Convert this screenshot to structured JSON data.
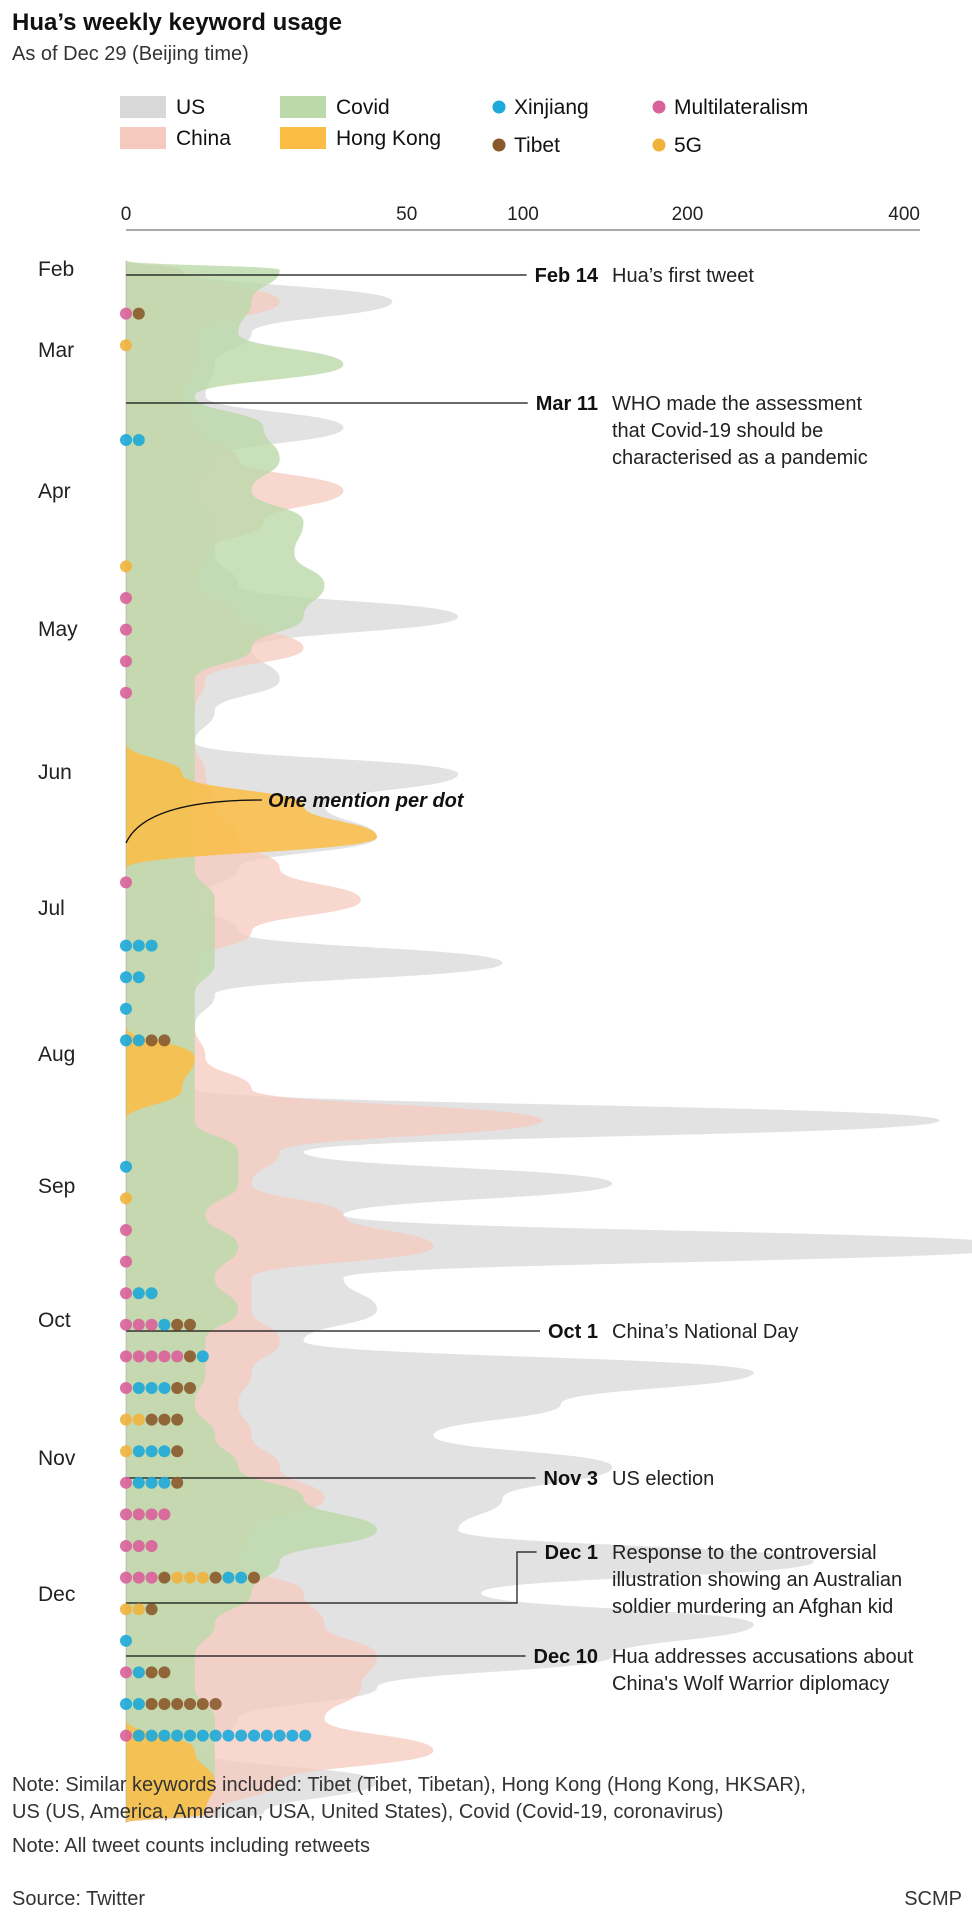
{
  "title": "Hua’s weekly keyword usage",
  "subtitle": "As of Dec 29 (Beijing time)",
  "legend": [
    {
      "label": "US",
      "kind": "area",
      "color": "#d8d8d8"
    },
    {
      "label": "China",
      "kind": "area",
      "color": "#f6c9bf"
    },
    {
      "label": "Covid",
      "kind": "area",
      "color": "#bcd9a9"
    },
    {
      "label": "Hong Kong",
      "kind": "area",
      "color": "#fbbd44"
    },
    {
      "label": "Xinjiang",
      "kind": "dot",
      "color": "#1da9d9"
    },
    {
      "label": "Tibet",
      "kind": "dot",
      "color": "#8a5a2c"
    },
    {
      "label": "Multilateralism",
      "kind": "dot",
      "color": "#d9609a"
    },
    {
      "label": "5G",
      "kind": "dot",
      "color": "#f0b43d"
    }
  ],
  "axis": {
    "ticks": [
      "0",
      "50",
      "100",
      "200",
      "400"
    ]
  },
  "months": [
    "Feb",
    "Mar",
    "Apr",
    "May",
    "Jun",
    "Jul",
    "Aug",
    "Sep",
    "Oct",
    "Nov",
    "Dec"
  ],
  "callout": "One mention per dot",
  "annotations": [
    {
      "date": "Feb 14",
      "lines": [
        "Hua’s first tweet"
      ]
    },
    {
      "date": "Mar 11",
      "lines": [
        "WHO made the assessment",
        "that Covid-19 should be",
        "characterised as a pandemic"
      ]
    },
    {
      "date": "Oct 1",
      "lines": [
        "China’s National Day"
      ]
    },
    {
      "date": "Nov 3",
      "lines": [
        "US election"
      ]
    },
    {
      "date": "Dec 1",
      "lines": [
        "Response to the controversial",
        "illustration showing an Australian",
        "soldier murdering an Afghan kid"
      ]
    },
    {
      "date": "Dec 10",
      "lines": [
        "Hua addresses accusations about",
        "China's Wolf Warrior diplomacy"
      ]
    }
  ],
  "notes": [
    "Note: Similar keywords included: Tibet (Tibet, Tibetan), Hong Kong (Hong Kong, HKSAR),",
    "US (US, America, American, USA, United States), Covid (Covid-19, coronavirus)",
    "Note: All tweet counts including retweets"
  ],
  "source": "Source: Twitter",
  "credit": "SCMP",
  "chart_data": {
    "type": "area",
    "x_scale": "sqrt",
    "x_ticks": [
      0,
      50,
      100,
      200,
      400
    ],
    "series": [
      {
        "name": "US",
        "color": "#d8d8d8",
        "values": [
          2,
          45,
          10,
          5,
          4,
          30,
          5,
          3,
          5,
          5,
          8,
          70,
          10,
          15,
          5,
          3,
          70,
          25,
          40,
          8,
          3,
          8,
          90,
          5,
          3,
          3,
          3,
          420,
          20,
          150,
          30,
          510,
          30,
          40,
          20,
          250,
          120,
          60,
          150,
          90,
          70,
          300,
          80,
          250,
          150,
          40,
          8,
          3,
          40,
          12
        ]
      },
      {
        "name": "China",
        "color": "#f6c9bf",
        "values": [
          2,
          15,
          3,
          3,
          2,
          3,
          8,
          30,
          12,
          4,
          3,
          8,
          20,
          4,
          3,
          3,
          4,
          5,
          8,
          15,
          35,
          10,
          3,
          3,
          3,
          4,
          10,
          110,
          15,
          10,
          30,
          60,
          10,
          10,
          15,
          10,
          8,
          10,
          15,
          25,
          10,
          8,
          20,
          25,
          40,
          35,
          25,
          60,
          15,
          5
        ]
      },
      {
        "name": "Covid",
        "color": "#bcd9a9",
        "values": [
          15,
          10,
          8,
          30,
          3,
          12,
          15,
          10,
          20,
          18,
          25,
          20,
          10,
          3,
          3,
          3,
          3,
          3,
          3,
          3,
          5,
          5,
          5,
          3,
          3,
          3,
          3,
          3,
          8,
          8,
          4,
          8,
          5,
          8,
          4,
          4,
          3,
          5,
          8,
          20,
          40,
          15,
          10,
          5,
          3,
          3,
          5,
          5,
          5,
          3
        ]
      },
      {
        "name": "Hong Kong",
        "color": "#fbbd44",
        "values": [
          0,
          0,
          0,
          0,
          0,
          0,
          0,
          0,
          0,
          0,
          0,
          0,
          0,
          0,
          0,
          0,
          2,
          20,
          40,
          0,
          0,
          0,
          0,
          0,
          0,
          3,
          2,
          0,
          0,
          0,
          0,
          0,
          0,
          0,
          0,
          0,
          0,
          0,
          0,
          0,
          0,
          0,
          0,
          0,
          0,
          0,
          0,
          3,
          5,
          4
        ]
      }
    ],
    "dot_rows": [
      {
        "week": 1,
        "dots": [
          "Multilateralism",
          "Tibet"
        ]
      },
      {
        "week": 2,
        "dots": [
          "5G"
        ]
      },
      {
        "week": 5,
        "dots": [
          "Xinjiang",
          "Xinjiang"
        ]
      },
      {
        "week": 9,
        "dots": [
          "5G"
        ]
      },
      {
        "week": 10,
        "dots": [
          "Multilateralism"
        ]
      },
      {
        "week": 11,
        "dots": [
          "Multilateralism"
        ]
      },
      {
        "week": 12,
        "dots": [
          "Multilateralism"
        ]
      },
      {
        "week": 13,
        "dots": [
          "Multilateralism"
        ]
      },
      {
        "week": 19,
        "dots": [
          "Multilateralism"
        ]
      },
      {
        "week": 21,
        "dots": [
          "Xinjiang",
          "Xinjiang",
          "Xinjiang"
        ]
      },
      {
        "week": 22,
        "dots": [
          "Xinjiang",
          "Xinjiang"
        ]
      },
      {
        "week": 23,
        "dots": [
          "Xinjiang"
        ]
      },
      {
        "week": 24,
        "dots": [
          "Xinjiang",
          "Xinjiang",
          "Tibet",
          "Tibet"
        ]
      },
      {
        "week": 28,
        "dots": [
          "Xinjiang"
        ]
      },
      {
        "week": 29,
        "dots": [
          "5G"
        ]
      },
      {
        "week": 30,
        "dots": [
          "Multilateralism"
        ]
      },
      {
        "week": 31,
        "dots": [
          "Multilateralism"
        ]
      },
      {
        "week": 32,
        "dots": [
          "Multilateralism",
          "Xinjiang",
          "Xinjiang"
        ]
      },
      {
        "week": 33,
        "dots": [
          "Multilateralism",
          "Multilateralism",
          "Multilateralism",
          "Xinjiang",
          "Tibet",
          "Tibet"
        ]
      },
      {
        "week": 34,
        "dots": [
          "Multilateralism",
          "Multilateralism",
          "Multilateralism",
          "Multilateralism",
          "Multilateralism",
          "Tibet",
          "Xinjiang"
        ]
      },
      {
        "week": 35,
        "dots": [
          "Multilateralism",
          "Xinjiang",
          "Xinjiang",
          "Xinjiang",
          "Tibet",
          "Tibet"
        ]
      },
      {
        "week": 36,
        "dots": [
          "5G",
          "5G",
          "Tibet",
          "Tibet",
          "Tibet"
        ]
      },
      {
        "week": 37,
        "dots": [
          "5G",
          "Xinjiang",
          "Xinjiang",
          "Xinjiang",
          "Tibet"
        ]
      },
      {
        "week": 38,
        "dots": [
          "Multilateralism",
          "Xinjiang",
          "Xinjiang",
          "Xinjiang",
          "Tibet"
        ]
      },
      {
        "week": 39,
        "dots": [
          "Multilateralism",
          "Multilateralism",
          "Multilateralism",
          "Multilateralism"
        ]
      },
      {
        "week": 40,
        "dots": [
          "Multilateralism",
          "Multilateralism",
          "Multilateralism"
        ]
      },
      {
        "week": 41,
        "dots": [
          "Multilateralism",
          "Multilateralism",
          "Multilateralism",
          "Tibet",
          "5G",
          "5G",
          "5G",
          "Tibet",
          "Xinjiang",
          "Xinjiang",
          "Tibet"
        ]
      },
      {
        "week": 42,
        "dots": [
          "5G",
          "5G",
          "Tibet"
        ]
      },
      {
        "week": 43,
        "dots": [
          "Xinjiang"
        ]
      },
      {
        "week": 44,
        "dots": [
          "Multilateralism",
          "Xinjiang",
          "Tibet",
          "Tibet"
        ]
      },
      {
        "week": 45,
        "dots": [
          "Xinjiang",
          "Xinjiang",
          "Tibet",
          "Tibet",
          "Tibet",
          "Tibet",
          "Tibet",
          "Tibet"
        ]
      },
      {
        "week": 46,
        "dots": [
          "Multilateralism",
          "Xinjiang",
          "Xinjiang",
          "Xinjiang",
          "Xinjiang",
          "Xinjiang",
          "Xinjiang",
          "Xinjiang",
          "Xinjiang",
          "Xinjiang",
          "Xinjiang",
          "Xinjiang",
          "Xinjiang",
          "Xinjiang",
          "Xinjiang"
        ]
      }
    ]
  }
}
